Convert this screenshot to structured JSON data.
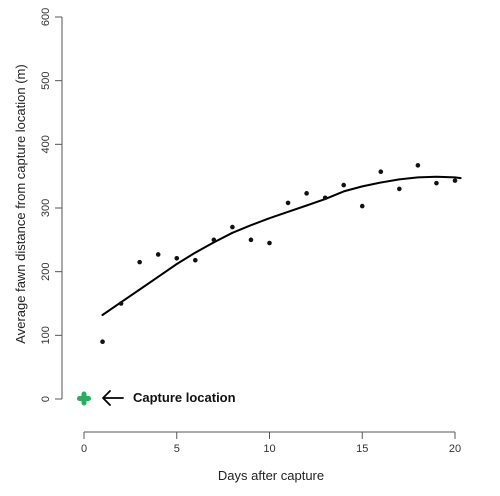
{
  "chart_data": {
    "type": "scatter",
    "xlabel": "Days after capture",
    "ylabel": "Average fawn distance from capture location (m)",
    "xlim": [
      0,
      20
    ],
    "ylim": [
      0,
      600
    ],
    "x_ticks": [
      0,
      5,
      10,
      15,
      20
    ],
    "y_ticks": [
      0,
      100,
      200,
      300,
      400,
      500,
      600
    ],
    "grid": false,
    "legend": "none",
    "colors": {
      "points": "#111111",
      "curve": "#000000",
      "marker": "#27ae60"
    },
    "series": [
      {
        "type": "scatter",
        "x": [
          1,
          2,
          3,
          4,
          5,
          6,
          7,
          8,
          9,
          10,
          11,
          12,
          13,
          14,
          15,
          16,
          17,
          18,
          19,
          20
        ],
        "y": [
          90,
          150,
          215,
          227,
          221,
          218,
          250,
          270,
          250,
          245,
          308,
          323,
          316,
          336,
          303,
          357,
          330,
          367,
          339,
          343
        ]
      },
      {
        "type": "line",
        "x": [
          1,
          2,
          3,
          4,
          5,
          6,
          7,
          8,
          9,
          10,
          11,
          12,
          13,
          14,
          15,
          16,
          17,
          18,
          19,
          20,
          20.3
        ],
        "y": [
          132,
          152,
          172,
          192,
          212,
          230,
          246,
          261,
          273,
          284,
          294,
          304,
          314,
          326,
          334,
          340,
          345,
          348,
          349,
          348,
          347
        ]
      }
    ],
    "annotation": {
      "text": "Capture location",
      "x": 0,
      "y": 0,
      "marker": "plus"
    }
  }
}
